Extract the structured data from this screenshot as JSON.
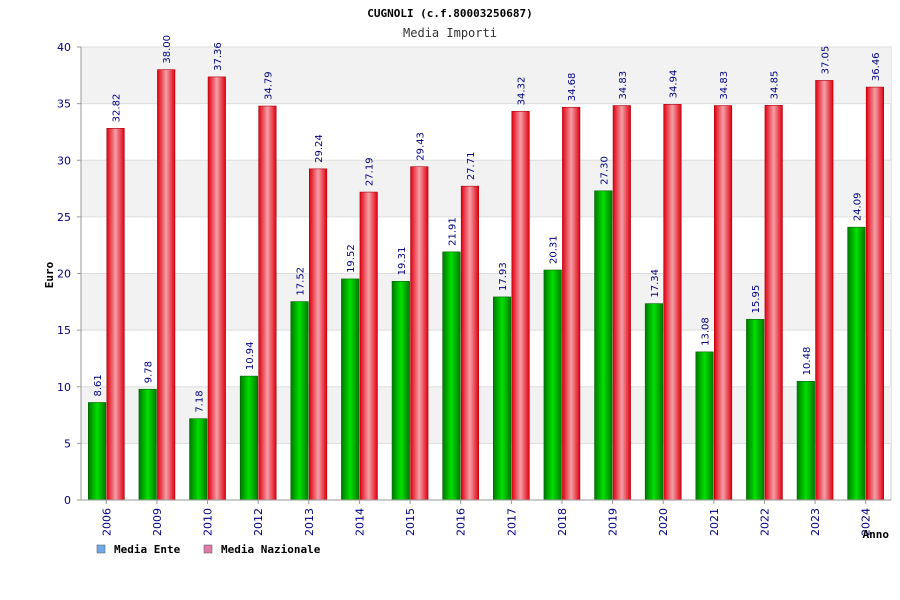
{
  "chart_data": {
    "type": "bar",
    "title": "CUGNOLI (c.f.80003250687)",
    "subtitle": "Media Importi",
    "xlabel": "Anno",
    "ylabel": "Euro",
    "ylim": [
      0,
      40
    ],
    "yticks": [
      0,
      5,
      10,
      15,
      20,
      25,
      30,
      35,
      40
    ],
    "grid": true,
    "legend_position": "bottom-left",
    "categories": [
      "2006",
      "2009",
      "2010",
      "2012",
      "2013",
      "2014",
      "2015",
      "2016",
      "2017",
      "2018",
      "2019",
      "2020",
      "2021",
      "2022",
      "2023",
      "2024"
    ],
    "series": [
      {
        "name": "Media Ente",
        "color": "#00b400",
        "legend_color": "#6fa8e8",
        "values": [
          8.61,
          9.78,
          7.18,
          10.94,
          17.52,
          19.52,
          19.31,
          21.91,
          17.93,
          20.31,
          27.3,
          17.34,
          13.08,
          15.95,
          10.48,
          24.09
        ],
        "labels": [
          "8.61",
          "9.78",
          "7.18",
          "10.94",
          "17.52",
          "19.52",
          "19.31",
          "21.91",
          "17.93",
          "20.31",
          "27.30",
          "17.34",
          "13.08",
          "15.95",
          "10.48",
          "24.09"
        ]
      },
      {
        "name": "Media Nazionale",
        "color": "#e8202a",
        "legend_color": "#e07aa8",
        "values": [
          32.82,
          38.0,
          37.36,
          34.79,
          29.24,
          27.19,
          29.43,
          27.71,
          34.32,
          34.68,
          34.83,
          34.94,
          34.83,
          34.85,
          37.05,
          36.46
        ],
        "labels": [
          "32.82",
          "38.00",
          "37.36",
          "34.79",
          "29.24",
          "27.19",
          "29.43",
          "27.71",
          "34.32",
          "34.68",
          "34.83",
          "34.94",
          "34.83",
          "34.85",
          "37.05",
          "36.46"
        ]
      }
    ]
  }
}
